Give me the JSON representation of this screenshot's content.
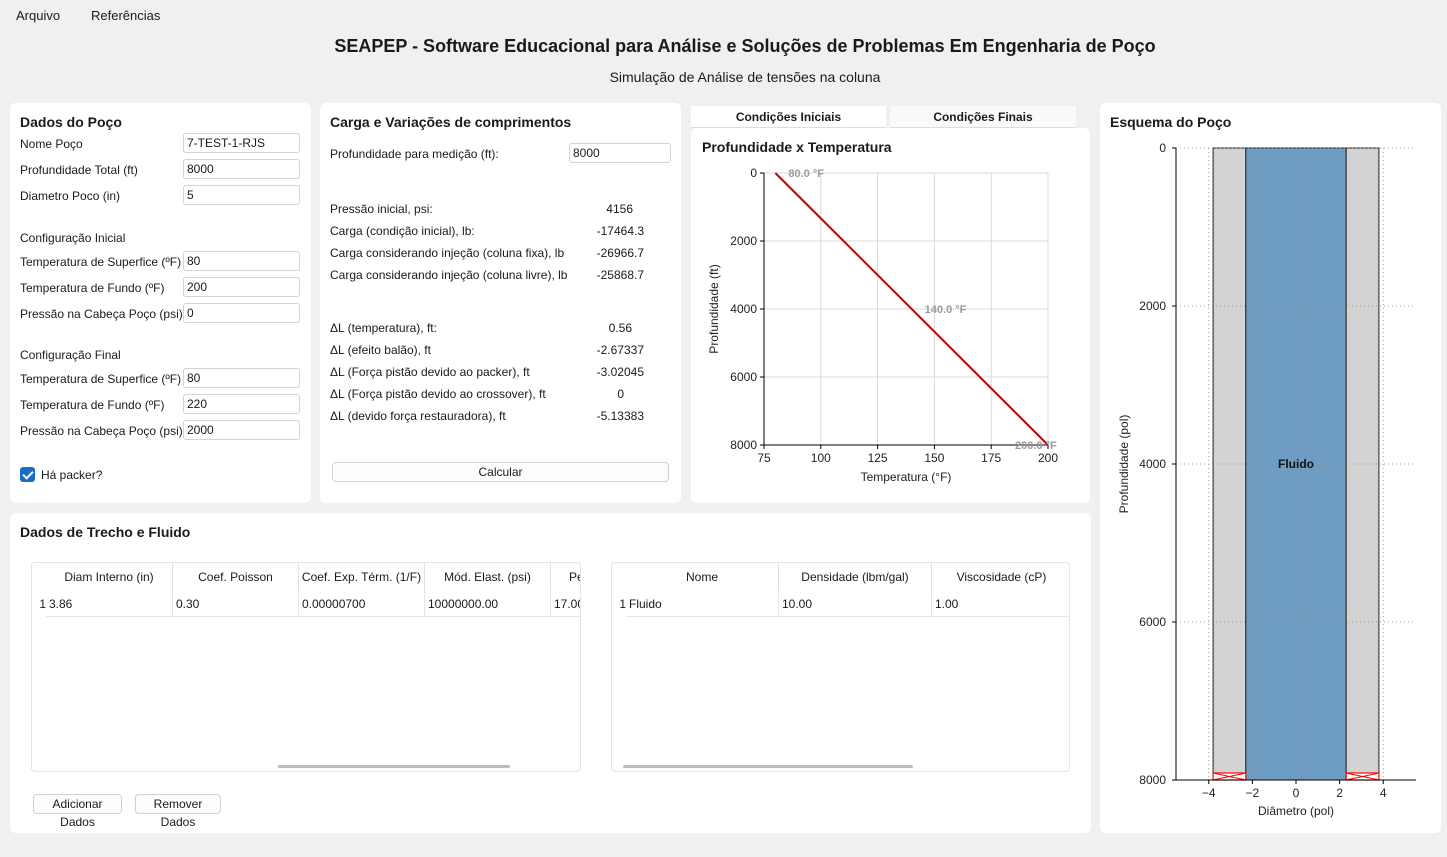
{
  "menu": {
    "arquivo": "Arquivo",
    "referencias": "Referências"
  },
  "app": {
    "title": "SEAPEP - Software Educacional para Análise e Soluções de Problemas Em Engenharia de Poço",
    "subtitle": "Simulação de Análise de tensões na coluna"
  },
  "dados_poco": {
    "title": "Dados do Poço",
    "nome_label": "Nome Poço",
    "nome_value": "7-TEST-1-RJS",
    "prof_label": "Profundidade Total (ft)",
    "prof_value": "8000",
    "diam_label": "Diametro Poco (in)",
    "diam_value": "5",
    "config_inicial": "Configuração Inicial",
    "ini_temp_sup_label": "Temperatura de Superfice (ºF)",
    "ini_temp_sup_value": "80",
    "ini_temp_fundo_label": "Temperatura de Fundo (ºF)",
    "ini_temp_fundo_value": "200",
    "ini_pressao_label": "Pressão na Cabeça Poço (psi)",
    "ini_pressao_value": "0",
    "config_final": "Configuração Final",
    "fin_temp_sup_label": "Temperatura de Superfice (ºF)",
    "fin_temp_sup_value": "80",
    "fin_temp_fundo_label": "Temperatura de Fundo (ºF)",
    "fin_temp_fundo_value": "220",
    "fin_pressao_label": "Pressão na Cabeça Poço (psi)",
    "fin_pressao_value": "2000",
    "packer_label": "Há packer?"
  },
  "carga": {
    "title": "Carga e Variações de comprimentos",
    "prof_med_label": "Profundidade para medição (ft):",
    "prof_med_value": "8000",
    "results": [
      {
        "label": "Pressão inicial, psi:",
        "value": "4156"
      },
      {
        "label": "Carga (condição inicial), lb:",
        "value": "-17464.3"
      },
      {
        "label": "Carga considerando injeção (coluna fixa), lb",
        "value": "-26966.7"
      },
      {
        "label": "Carga considerando injeção (coluna livre), lb",
        "value": "-25868.7"
      },
      {
        "label": "ΔL (temperatura), ft:",
        "value": "0.56"
      },
      {
        "label": "ΔL (efeito balão), ft",
        "value": "-2.67337"
      },
      {
        "label": "ΔL (Força pistão devido ao packer), ft",
        "value": "-3.02045"
      },
      {
        "label": "ΔL (Força pistão devido ao crossover), ft",
        "value": "0"
      },
      {
        "label": "ΔL (devido força restauradora), ft",
        "value": "-5.13383"
      }
    ],
    "calcular": "Calcular"
  },
  "tabs": {
    "iniciais": "Condições Iniciais",
    "finais": "Condições Finais"
  },
  "chart_data": [
    {
      "type": "line",
      "title": "Profundidade x Temperatura",
      "xlabel": "Temperatura (°F)",
      "ylabel": "Profundidade (ft)",
      "xlim": [
        75,
        200
      ],
      "ylim": [
        8000,
        0
      ],
      "x_ticks": [
        "75",
        "100",
        "125",
        "150",
        "175",
        "200"
      ],
      "y_ticks": [
        "0",
        "2000",
        "4000",
        "6000",
        "8000"
      ],
      "grid": true,
      "series": [
        {
          "x": [
            80,
            200
          ],
          "y": [
            0,
            8000
          ],
          "color": "#c00000"
        }
      ],
      "annotations": [
        {
          "text": "80.0 °F",
          "x": 80,
          "y": 0
        },
        {
          "text": "140.0 °F",
          "x": 140,
          "y": 4000
        },
        {
          "text": "200.0 °F",
          "x": 200,
          "y": 8000
        }
      ]
    },
    {
      "type": "area",
      "title": "Esquema do Poço",
      "xlabel": "Diâmetro (pol)",
      "ylabel": "Profundidade (pol)",
      "xlim": [
        -5.5,
        5.5
      ],
      "ylim": [
        8000,
        0
      ],
      "x_ticks": [
        "−4",
        "−2",
        "0",
        "2",
        "4"
      ],
      "y_ticks": [
        "0",
        "2000",
        "4000",
        "6000",
        "8000"
      ],
      "grid": true,
      "regions": [
        {
          "name": "",
          "x_from": -3.8,
          "x_to": -2.3,
          "color": "#d3d3d3"
        },
        {
          "name": "Fluido",
          "x_from": -2.3,
          "x_to": 2.3,
          "color": "#6f9cc3"
        },
        {
          "name": "",
          "x_from": 2.3,
          "x_to": 3.8,
          "color": "#d3d3d3"
        }
      ],
      "packer_depth": 8000,
      "packer_color": "#ff0000"
    }
  ],
  "trecho": {
    "title": "Dados de Trecho e Fluido",
    "headers": [
      "Diam Interno (in)",
      "Coef. Poisson",
      "Coef. Exp. Térm. (1/F)",
      "Mód. Elast. (psi)",
      "Pe"
    ],
    "rows": [
      {
        "num": "1",
        "cells": [
          "3.86",
          "0.30",
          "0.00000700",
          "10000000.00",
          "17.00"
        ]
      }
    ]
  },
  "fluido": {
    "headers": [
      "Nome",
      "Densidade (lbm/gal)",
      "Viscosidade (cP)"
    ],
    "rows": [
      {
        "num": "1",
        "cells": [
          "Fluido",
          "10.00",
          "1.00"
        ]
      }
    ]
  },
  "buttons": {
    "adicionar": "Adicionar Dados",
    "remover": "Remover Dados"
  }
}
